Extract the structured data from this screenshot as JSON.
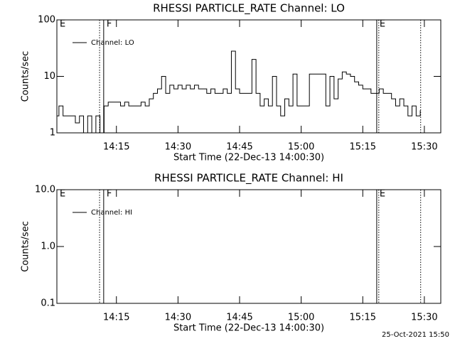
{
  "chart_data": [
    {
      "type": "line",
      "title": "RHESSI PARTICLE_RATE Channel: LO",
      "x_label": "Start Time (22-Dec-13 14:00:30)",
      "y_label": "Counts/sec",
      "x": [
        0.5,
        1,
        2,
        4,
        5,
        6,
        7,
        8,
        9,
        10,
        11,
        12,
        13,
        14,
        15,
        16,
        17,
        18,
        19,
        20,
        21,
        22,
        23,
        24,
        25,
        26,
        27,
        28,
        29,
        30,
        31,
        32,
        33,
        34,
        35,
        36,
        37,
        38,
        39,
        40,
        41,
        42,
        43,
        44,
        45,
        46,
        47,
        48,
        49,
        50,
        51,
        52,
        53,
        54,
        55,
        56,
        57,
        58,
        59,
        60,
        61,
        62,
        63,
        64,
        65,
        66,
        67,
        68,
        69,
        70,
        71,
        72,
        73,
        74,
        75,
        76,
        77,
        78,
        79,
        80,
        81,
        82,
        83,
        84,
        85,
        86,
        87,
        88,
        89
      ],
      "series": [
        {
          "name": "Channel: LO",
          "color": "#000000",
          "values": [
            2,
            3,
            2,
            2,
            1.5,
            2,
            1,
            2,
            1,
            2,
            1,
            3,
            3.5,
            3.5,
            3.5,
            3,
            3.5,
            3,
            3,
            3,
            3.5,
            3,
            4,
            5,
            6,
            10,
            5,
            7,
            6,
            7,
            6,
            7,
            6,
            7,
            6,
            6,
            5,
            6,
            5,
            5,
            6,
            5,
            28,
            6,
            5,
            5,
            5,
            20,
            5,
            3,
            4,
            3,
            10,
            3,
            2,
            4,
            3,
            11,
            3,
            3,
            3,
            11,
            11,
            11,
            11,
            3,
            10,
            4,
            9,
            12,
            11,
            10,
            8,
            7,
            6,
            6,
            5,
            5,
            6,
            5,
            5,
            4,
            3,
            4,
            3,
            2,
            3,
            2,
            2.5
          ]
        }
      ],
      "xlim": [
        0.5,
        94
      ],
      "xticks": [
        {
          "value": 15,
          "label": "14:15"
        },
        {
          "value": 30,
          "label": "14:30"
        },
        {
          "value": 45,
          "label": "14:45"
        },
        {
          "value": 60,
          "label": "15:00"
        },
        {
          "value": 75,
          "label": "15:15"
        },
        {
          "value": 90,
          "label": "15:30"
        }
      ],
      "ylim": [
        1,
        100
      ],
      "yticks": [
        1,
        10,
        100
      ],
      "log_y": true,
      "legend": "upper left",
      "markers": [
        {
          "x": 0.5,
          "label": "E"
        },
        {
          "x": 10.9,
          "style": "dotted"
        },
        {
          "x": 11.9,
          "style": "solid",
          "label": "F"
        },
        {
          "x": 78.4,
          "style": "solid",
          "label": "E"
        },
        {
          "x": 78.9,
          "style": "dotted"
        },
        {
          "x": 89.1,
          "style": "dotted"
        }
      ]
    },
    {
      "type": "line",
      "title": "RHESSI PARTICLE_RATE Channel: HI",
      "x_label": "Start Time (22-Dec-13 14:00:30)",
      "y_label": "Counts/sec",
      "x": [],
      "series": [
        {
          "name": "Channel: HI",
          "color": "#000000",
          "values": []
        }
      ],
      "xlim": [
        0.5,
        94
      ],
      "xticks": [
        {
          "value": 15,
          "label": "14:15"
        },
        {
          "value": 30,
          "label": "14:30"
        },
        {
          "value": 45,
          "label": "14:45"
        },
        {
          "value": 60,
          "label": "15:00"
        },
        {
          "value": 75,
          "label": "15:15"
        },
        {
          "value": 90,
          "label": "15:30"
        }
      ],
      "ylim": [
        0.1,
        10
      ],
      "yticks": [
        0.1,
        {
          "value": 1,
          "label": "1.0"
        },
        {
          "value": 10,
          "label": "10.0"
        }
      ],
      "log_y": true,
      "legend": "upper left",
      "markers": [
        {
          "x": 0.5,
          "label": "E"
        },
        {
          "x": 10.9,
          "style": "dotted"
        },
        {
          "x": 11.9,
          "style": "solid",
          "label": "F"
        },
        {
          "x": 78.4,
          "style": "solid",
          "label": "E"
        },
        {
          "x": 78.9,
          "style": "dotted"
        },
        {
          "x": 89.1,
          "style": "dotted"
        }
      ]
    }
  ],
  "footer": "25-Oct-2021 15:50"
}
